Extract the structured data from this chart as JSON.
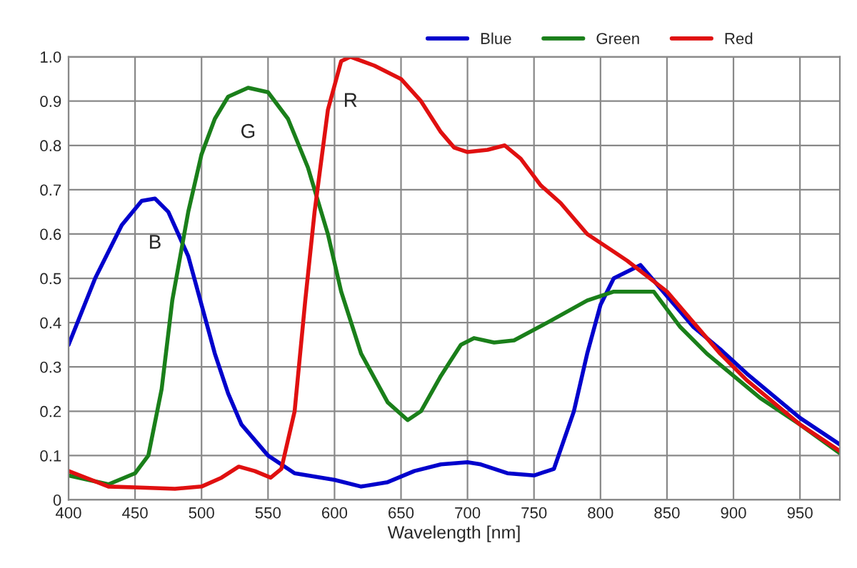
{
  "chart_data": {
    "type": "line",
    "xlabel": "Wavelength [nm]",
    "xlim": [
      400,
      980
    ],
    "xticks": [
      400,
      450,
      500,
      550,
      600,
      650,
      700,
      750,
      800,
      850,
      900,
      950
    ],
    "ylim": [
      0,
      1
    ],
    "yticks": [
      {
        "value": 0,
        "label": "0"
      },
      {
        "value": 0.1,
        "label": "0.1"
      },
      {
        "value": 0.2,
        "label": "0.2"
      },
      {
        "value": 0.3,
        "label": "0.3"
      },
      {
        "value": 0.4,
        "label": "0.4"
      },
      {
        "value": 0.5,
        "label": "0.5"
      },
      {
        "value": 0.6,
        "label": "0.6"
      },
      {
        "value": 0.7,
        "label": "0.7"
      },
      {
        "value": 0.8,
        "label": "0.8"
      },
      {
        "value": 0.9,
        "label": "0.9"
      },
      {
        "value": 1,
        "label": "1.0"
      }
    ],
    "grid": true,
    "legend": "top right",
    "marker": "none",
    "line_style": "solid",
    "series": [
      {
        "name": "Blue",
        "color": "#0000cc",
        "x": [
          400,
          420,
          440,
          455,
          465,
          475,
          490,
          500,
          510,
          520,
          530,
          550,
          570,
          600,
          620,
          640,
          660,
          680,
          700,
          710,
          730,
          750,
          765,
          780,
          790,
          800,
          810,
          830,
          850,
          870,
          890,
          910,
          930,
          950,
          980
        ],
        "values": [
          0.35,
          0.5,
          0.62,
          0.675,
          0.68,
          0.65,
          0.55,
          0.44,
          0.33,
          0.24,
          0.17,
          0.1,
          0.06,
          0.045,
          0.03,
          0.04,
          0.065,
          0.08,
          0.085,
          0.08,
          0.06,
          0.055,
          0.07,
          0.2,
          0.33,
          0.44,
          0.5,
          0.53,
          0.46,
          0.39,
          0.34,
          0.285,
          0.235,
          0.185,
          0.125
        ]
      },
      {
        "name": "Green",
        "color": "#1a7f1a",
        "x": [
          400,
          430,
          450,
          460,
          470,
          478,
          490,
          500,
          510,
          520,
          535,
          550,
          565,
          580,
          595,
          605,
          620,
          640,
          655,
          665,
          680,
          695,
          705,
          720,
          735,
          760,
          790,
          810,
          840,
          860,
          880,
          900,
          920,
          950,
          980
        ],
        "values": [
          0.055,
          0.035,
          0.06,
          0.1,
          0.25,
          0.45,
          0.65,
          0.78,
          0.86,
          0.91,
          0.93,
          0.92,
          0.86,
          0.75,
          0.6,
          0.47,
          0.33,
          0.22,
          0.18,
          0.2,
          0.28,
          0.35,
          0.365,
          0.355,
          0.36,
          0.4,
          0.45,
          0.47,
          0.47,
          0.39,
          0.33,
          0.28,
          0.23,
          0.17,
          0.105
        ]
      },
      {
        "name": "Red",
        "color": "#e01010",
        "x": [
          400,
          430,
          450,
          480,
          500,
          515,
          528,
          540,
          552,
          560,
          570,
          578,
          585,
          595,
          605,
          612,
          630,
          650,
          665,
          680,
          690,
          700,
          715,
          728,
          740,
          755,
          770,
          790,
          810,
          820,
          850,
          870,
          890,
          910,
          930,
          950,
          980
        ],
        "values": [
          0.065,
          0.03,
          0.028,
          0.025,
          0.03,
          0.05,
          0.075,
          0.065,
          0.05,
          0.07,
          0.2,
          0.45,
          0.65,
          0.88,
          0.99,
          1.0,
          0.98,
          0.95,
          0.9,
          0.83,
          0.795,
          0.785,
          0.79,
          0.8,
          0.77,
          0.71,
          0.67,
          0.6,
          0.56,
          0.54,
          0.47,
          0.4,
          0.33,
          0.27,
          0.22,
          0.17,
          0.11
        ]
      }
    ],
    "annotations": [
      "B",
      "G",
      "R"
    ]
  }
}
